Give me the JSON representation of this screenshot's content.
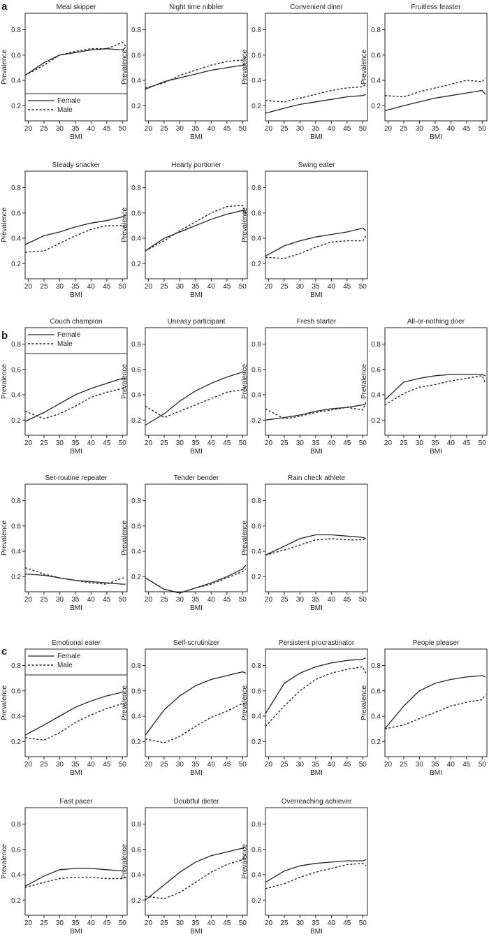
{
  "figure": {
    "xlabel": "BMI",
    "ylabel": "Prevalence",
    "xticks": [
      20,
      25,
      30,
      35,
      40,
      45,
      50
    ],
    "yticks": [
      0.2,
      0.4,
      0.6,
      0.8
    ],
    "xlim": [
      19,
      51.5
    ],
    "ylim": [
      0.08,
      0.93
    ],
    "legend": {
      "female": "Female",
      "male": "Male"
    },
    "colors": {
      "line": "#222222",
      "axis": "#222222"
    }
  },
  "sections": [
    {
      "label": "a",
      "rows": 2
    },
    {
      "label": "b",
      "rows": 2
    },
    {
      "label": "c",
      "rows": 2
    }
  ],
  "chart_data": [
    {
      "type": "line",
      "section": "a",
      "title": "Meal skipper",
      "legend": "bottom-left",
      "x": [
        19,
        25,
        30,
        35,
        40,
        45,
        50,
        51
      ],
      "series": [
        {
          "name": "Female",
          "style": "solid",
          "values": [
            0.44,
            0.54,
            0.6,
            0.62,
            0.64,
            0.65,
            0.64,
            0.66
          ]
        },
        {
          "name": "Male",
          "style": "dashed",
          "values": [
            0.44,
            0.52,
            0.6,
            0.63,
            0.65,
            0.65,
            0.7,
            0.67
          ]
        }
      ]
    },
    {
      "type": "line",
      "section": "a",
      "title": "Night time nibbler",
      "x": [
        19,
        25,
        30,
        35,
        40,
        45,
        50,
        51
      ],
      "series": [
        {
          "name": "Female",
          "style": "solid",
          "values": [
            0.33,
            0.39,
            0.42,
            0.45,
            0.48,
            0.5,
            0.52,
            0.53
          ]
        },
        {
          "name": "Male",
          "style": "dashed",
          "values": [
            0.34,
            0.38,
            0.44,
            0.48,
            0.52,
            0.55,
            0.56,
            0.58
          ]
        }
      ]
    },
    {
      "type": "line",
      "section": "a",
      "title": "Convenient diner",
      "x": [
        19,
        25,
        30,
        35,
        40,
        45,
        50,
        51
      ],
      "series": [
        {
          "name": "Female",
          "style": "solid",
          "values": [
            0.14,
            0.18,
            0.21,
            0.23,
            0.25,
            0.27,
            0.28,
            0.29
          ]
        },
        {
          "name": "Male",
          "style": "dashed",
          "values": [
            0.24,
            0.23,
            0.26,
            0.29,
            0.32,
            0.34,
            0.35,
            0.37
          ]
        }
      ]
    },
    {
      "type": "line",
      "section": "a",
      "title": "Fruitless feaster",
      "x": [
        19,
        25,
        30,
        35,
        40,
        45,
        50,
        51
      ],
      "series": [
        {
          "name": "Female",
          "style": "solid",
          "values": [
            0.16,
            0.2,
            0.23,
            0.26,
            0.28,
            0.3,
            0.32,
            0.29
          ]
        },
        {
          "name": "Male",
          "style": "dashed",
          "values": [
            0.28,
            0.27,
            0.31,
            0.34,
            0.37,
            0.4,
            0.39,
            0.42
          ]
        }
      ]
    },
    {
      "type": "line",
      "section": "a",
      "title": "Steady snacker",
      "x": [
        19,
        25,
        30,
        35,
        40,
        45,
        50,
        51
      ],
      "series": [
        {
          "name": "Female",
          "style": "solid",
          "values": [
            0.35,
            0.42,
            0.45,
            0.49,
            0.52,
            0.54,
            0.57,
            0.58
          ]
        },
        {
          "name": "Male",
          "style": "dashed",
          "values": [
            0.29,
            0.3,
            0.36,
            0.42,
            0.47,
            0.5,
            0.5,
            0.48
          ]
        }
      ]
    },
    {
      "type": "line",
      "section": "a",
      "title": "Hearty portioner",
      "x": [
        19,
        25,
        30,
        35,
        40,
        45,
        50,
        51
      ],
      "series": [
        {
          "name": "Female",
          "style": "solid",
          "values": [
            0.3,
            0.4,
            0.45,
            0.5,
            0.55,
            0.59,
            0.62,
            0.59
          ]
        },
        {
          "name": "Male",
          "style": "dashed",
          "values": [
            0.3,
            0.38,
            0.46,
            0.53,
            0.6,
            0.65,
            0.66,
            0.6
          ]
        }
      ]
    },
    {
      "type": "line",
      "section": "a",
      "title": "Swing eater",
      "x": [
        19,
        25,
        30,
        35,
        40,
        45,
        50,
        51
      ],
      "series": [
        {
          "name": "Female",
          "style": "solid",
          "values": [
            0.26,
            0.34,
            0.38,
            0.41,
            0.43,
            0.45,
            0.48,
            0.46
          ]
        },
        {
          "name": "Male",
          "style": "dashed",
          "values": [
            0.25,
            0.24,
            0.28,
            0.33,
            0.37,
            0.38,
            0.38,
            0.42
          ]
        }
      ]
    },
    {
      "type": "line",
      "section": "b",
      "title": "Couch champion",
      "legend": "top-left",
      "x": [
        19,
        25,
        30,
        35,
        40,
        45,
        50,
        51
      ],
      "series": [
        {
          "name": "Female",
          "style": "solid",
          "values": [
            0.19,
            0.26,
            0.33,
            0.4,
            0.45,
            0.49,
            0.53,
            0.53
          ]
        },
        {
          "name": "Male",
          "style": "dashed",
          "values": [
            0.27,
            0.21,
            0.25,
            0.31,
            0.38,
            0.42,
            0.45,
            0.46
          ]
        }
      ]
    },
    {
      "type": "line",
      "section": "b",
      "title": "Uneasy participant",
      "x": [
        19,
        25,
        30,
        35,
        40,
        45,
        50,
        51
      ],
      "series": [
        {
          "name": "Female",
          "style": "solid",
          "values": [
            0.16,
            0.25,
            0.35,
            0.43,
            0.49,
            0.54,
            0.58,
            0.57
          ]
        },
        {
          "name": "Male",
          "style": "dashed",
          "values": [
            0.31,
            0.22,
            0.27,
            0.32,
            0.37,
            0.42,
            0.44,
            0.46
          ]
        }
      ]
    },
    {
      "type": "line",
      "section": "b",
      "title": "Fresh starter",
      "x": [
        19,
        25,
        30,
        35,
        40,
        45,
        50,
        51
      ],
      "series": [
        {
          "name": "Female",
          "style": "solid",
          "values": [
            0.2,
            0.22,
            0.24,
            0.27,
            0.29,
            0.3,
            0.32,
            0.33
          ]
        },
        {
          "name": "Male",
          "style": "dashed",
          "values": [
            0.29,
            0.21,
            0.23,
            0.26,
            0.28,
            0.3,
            0.28,
            0.34
          ]
        }
      ]
    },
    {
      "type": "line",
      "section": "b",
      "title": "All-or-nothing doer",
      "x": [
        19,
        25,
        30,
        35,
        40,
        45,
        50,
        51
      ],
      "series": [
        {
          "name": "Female",
          "style": "solid",
          "values": [
            0.36,
            0.5,
            0.53,
            0.55,
            0.56,
            0.56,
            0.56,
            0.55
          ]
        },
        {
          "name": "Male",
          "style": "dashed",
          "values": [
            0.32,
            0.41,
            0.46,
            0.48,
            0.51,
            0.53,
            0.55,
            0.49
          ]
        }
      ]
    },
    {
      "type": "line",
      "section": "b",
      "title": "Set-routine repeater",
      "x": [
        19,
        25,
        30,
        35,
        40,
        45,
        50,
        51
      ],
      "series": [
        {
          "name": "Female",
          "style": "solid",
          "values": [
            0.22,
            0.21,
            0.19,
            0.17,
            0.16,
            0.15,
            0.14,
            0.14
          ]
        },
        {
          "name": "Male",
          "style": "dashed",
          "values": [
            0.27,
            0.22,
            0.19,
            0.17,
            0.15,
            0.14,
            0.19,
            0.18
          ]
        }
      ]
    },
    {
      "type": "line",
      "section": "b",
      "title": "Tender bender",
      "x": [
        19,
        25,
        30,
        35,
        40,
        45,
        50,
        51
      ],
      "series": [
        {
          "name": "Female",
          "style": "solid",
          "values": [
            0.19,
            0.1,
            0.07,
            0.11,
            0.15,
            0.2,
            0.26,
            0.29
          ]
        },
        {
          "name": "Male",
          "style": "dashed",
          "values": [
            0.19,
            0.1,
            0.07,
            0.11,
            0.14,
            0.19,
            0.24,
            0.26
          ]
        }
      ]
    },
    {
      "type": "line",
      "section": "b",
      "title": "Rain check athlete",
      "x": [
        19,
        25,
        30,
        35,
        40,
        45,
        50,
        51
      ],
      "series": [
        {
          "name": "Female",
          "style": "solid",
          "values": [
            0.37,
            0.44,
            0.5,
            0.53,
            0.53,
            0.52,
            0.51,
            0.5
          ]
        },
        {
          "name": "Male",
          "style": "dashed",
          "values": [
            0.37,
            0.41,
            0.45,
            0.49,
            0.5,
            0.49,
            0.49,
            0.5
          ]
        }
      ]
    },
    {
      "type": "line",
      "section": "c",
      "title": "Emotional eater",
      "legend": "top-left",
      "x": [
        19,
        25,
        30,
        35,
        40,
        45,
        50,
        51
      ],
      "series": [
        {
          "name": "Female",
          "style": "solid",
          "values": [
            0.25,
            0.33,
            0.4,
            0.47,
            0.52,
            0.56,
            0.59,
            0.59
          ]
        },
        {
          "name": "Male",
          "style": "dashed",
          "values": [
            0.23,
            0.21,
            0.27,
            0.35,
            0.41,
            0.46,
            0.5,
            0.48
          ]
        }
      ]
    },
    {
      "type": "line",
      "section": "c",
      "title": "Self-scrutinizer",
      "x": [
        19,
        25,
        30,
        35,
        40,
        45,
        50,
        51
      ],
      "series": [
        {
          "name": "Female",
          "style": "solid",
          "values": [
            0.25,
            0.45,
            0.56,
            0.64,
            0.69,
            0.72,
            0.75,
            0.74
          ]
        },
        {
          "name": "Male",
          "style": "dashed",
          "values": [
            0.22,
            0.19,
            0.24,
            0.32,
            0.39,
            0.44,
            0.5,
            0.49
          ]
        }
      ]
    },
    {
      "type": "line",
      "section": "c",
      "title": "Persistent procrastinator",
      "x": [
        19,
        25,
        30,
        35,
        40,
        45,
        50,
        51
      ],
      "series": [
        {
          "name": "Female",
          "style": "solid",
          "values": [
            0.42,
            0.66,
            0.74,
            0.79,
            0.82,
            0.84,
            0.85,
            0.86
          ]
        },
        {
          "name": "Male",
          "style": "dashed",
          "values": [
            0.32,
            0.48,
            0.6,
            0.69,
            0.74,
            0.77,
            0.79,
            0.74
          ]
        }
      ]
    },
    {
      "type": "line",
      "section": "c",
      "title": "People pleaser",
      "x": [
        19,
        25,
        30,
        35,
        40,
        45,
        50,
        51
      ],
      "series": [
        {
          "name": "Female",
          "style": "solid",
          "values": [
            0.3,
            0.48,
            0.6,
            0.66,
            0.69,
            0.71,
            0.72,
            0.71
          ]
        },
        {
          "name": "Male",
          "style": "dashed",
          "values": [
            0.3,
            0.33,
            0.38,
            0.43,
            0.48,
            0.51,
            0.53,
            0.57
          ]
        }
      ]
    },
    {
      "type": "line",
      "section": "c",
      "title": "Fast pacer",
      "x": [
        19,
        25,
        30,
        35,
        40,
        45,
        50,
        51
      ],
      "series": [
        {
          "name": "Female",
          "style": "solid",
          "values": [
            0.31,
            0.39,
            0.44,
            0.45,
            0.45,
            0.44,
            0.43,
            0.43
          ]
        },
        {
          "name": "Male",
          "style": "dashed",
          "values": [
            0.3,
            0.34,
            0.37,
            0.38,
            0.38,
            0.37,
            0.37,
            0.38
          ]
        }
      ]
    },
    {
      "type": "line",
      "section": "c",
      "title": "Doubtful dieter",
      "x": [
        19,
        25,
        30,
        35,
        40,
        45,
        50,
        51
      ],
      "series": [
        {
          "name": "Female",
          "style": "solid",
          "values": [
            0.2,
            0.32,
            0.42,
            0.5,
            0.55,
            0.58,
            0.61,
            0.62
          ]
        },
        {
          "name": "Male",
          "style": "dashed",
          "values": [
            0.23,
            0.21,
            0.26,
            0.34,
            0.42,
            0.48,
            0.52,
            0.56
          ]
        }
      ]
    },
    {
      "type": "line",
      "section": "c",
      "title": "Overreaching achiever",
      "x": [
        19,
        25,
        30,
        35,
        40,
        45,
        50,
        51
      ],
      "series": [
        {
          "name": "Female",
          "style": "solid",
          "values": [
            0.34,
            0.43,
            0.47,
            0.49,
            0.5,
            0.51,
            0.51,
            0.52
          ]
        },
        {
          "name": "Male",
          "style": "dashed",
          "values": [
            0.29,
            0.33,
            0.38,
            0.42,
            0.45,
            0.48,
            0.49,
            0.47
          ]
        }
      ]
    }
  ]
}
